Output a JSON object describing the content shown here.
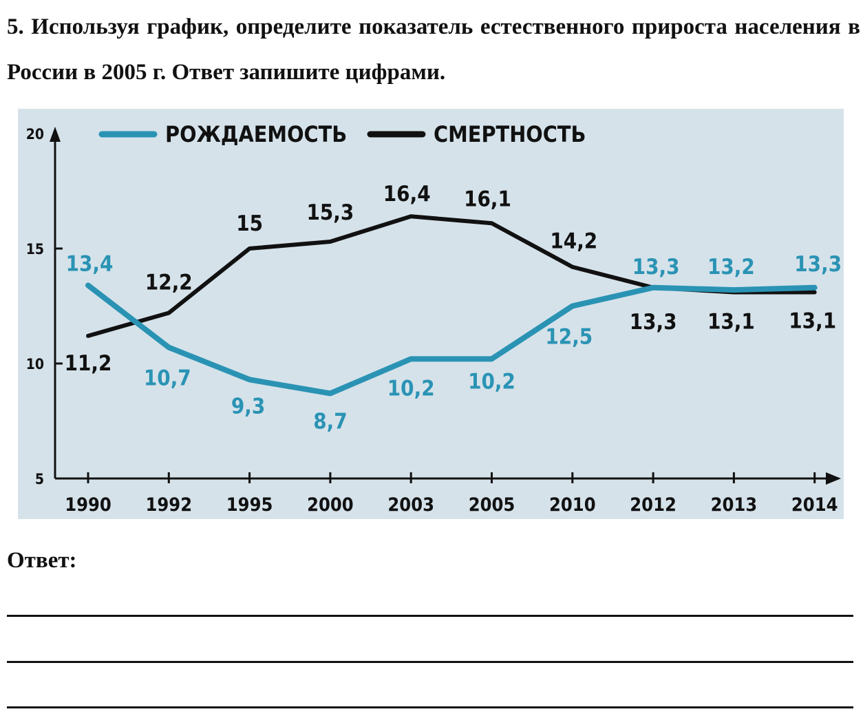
{
  "question": {
    "text": "5. Используя график, определите показатель естественного прироста населения в России в 2005 г. Ответ запишите цифрами."
  },
  "chart_data": {
    "type": "line",
    "categories": [
      "1990",
      "1992",
      "1995",
      "2000",
      "2003",
      "2005",
      "2010",
      "2012",
      "2013",
      "2014"
    ],
    "series": [
      {
        "name": "РОЖДАЕМОСТЬ",
        "color": "#2a93b4",
        "values": [
          13.4,
          10.7,
          9.3,
          8.7,
          10.2,
          10.2,
          12.5,
          13.3,
          13.2,
          13.3
        ],
        "labels": [
          "13,4",
          "10,7",
          "9,3",
          "8,7",
          "10,2",
          "10,2",
          "12,5",
          "13,3",
          "13,2",
          "13,3"
        ]
      },
      {
        "name": "СМЕРТНОСТЬ",
        "color": "#111111",
        "values": [
          11.2,
          12.2,
          15,
          15.3,
          16.4,
          16.1,
          14.2,
          13.3,
          13.1,
          13.1
        ],
        "labels": [
          "11,2",
          "12,2",
          "15",
          "15,3",
          "16,4",
          "16,1",
          "14,2",
          "13,3",
          "13,1",
          "13,1"
        ]
      }
    ],
    "yticks": [
      "5",
      "10",
      "15",
      "20"
    ],
    "yticks_values": [
      5,
      10,
      15,
      20
    ],
    "ylim": [
      5,
      20
    ],
    "legend_position": "top"
  },
  "answer": {
    "label": "Ответ:"
  }
}
